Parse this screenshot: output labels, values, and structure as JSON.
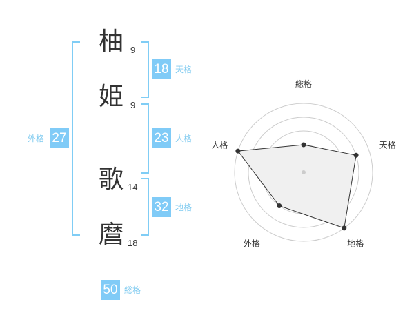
{
  "name": {
    "chars": [
      {
        "char": "柚",
        "strokes": "9"
      },
      {
        "char": "姫",
        "strokes": "9"
      },
      {
        "char": "歌",
        "strokes": "14"
      },
      {
        "char": "麿",
        "strokes": "18"
      }
    ]
  },
  "fortunes": {
    "tenkaku": {
      "label": "天格",
      "value": "18"
    },
    "jinkaku": {
      "label": "人格",
      "value": "23"
    },
    "chikaku": {
      "label": "地格",
      "value": "32"
    },
    "gaikaku": {
      "label": "外格",
      "value": "27"
    },
    "soukaku": {
      "label": "総格",
      "value": "50"
    }
  },
  "colors": {
    "accent": "#80cbf7",
    "bracket": "#80cdf5",
    "polygon_fill": "#f0f0f0",
    "polygon_stroke": "#333333",
    "grid": "#cccccc"
  },
  "chart_data": {
    "type": "radar",
    "axes": [
      "総格",
      "天格",
      "地格",
      "外格",
      "人格"
    ],
    "values": [
      2,
      4,
      5,
      3,
      5
    ],
    "range": [
      0,
      5
    ],
    "rings": 5
  }
}
